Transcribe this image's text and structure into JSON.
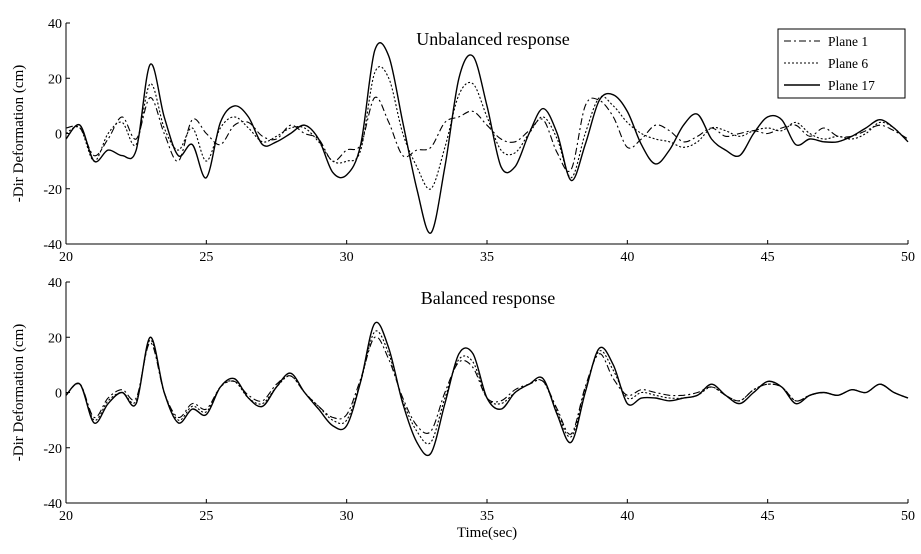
{
  "chart_data": [
    {
      "type": "line",
      "title": "Unbalanced response",
      "xlabel": "",
      "ylabel": "-Dir Deformation (cm)",
      "xlim": [
        20,
        50
      ],
      "ylim": [
        -40,
        40
      ],
      "xticks": [
        20,
        25,
        30,
        35,
        40,
        45,
        50
      ],
      "yticks": [
        -40,
        -20,
        0,
        20,
        40
      ],
      "grid": false,
      "legend": {
        "position": "top-right",
        "entries": [
          "Plane 1",
          "Plane 6",
          "Plane 17"
        ]
      },
      "series": [
        {
          "name": "Plane 1",
          "style": "dashdot",
          "x": [
            20,
            20.5,
            21,
            21.5,
            22,
            22.5,
            23,
            23.5,
            24,
            24.5,
            25,
            25.5,
            26,
            26.5,
            27,
            27.5,
            28,
            28.5,
            29,
            29.5,
            30,
            30.5,
            31,
            31.5,
            32,
            32.5,
            33,
            33.5,
            34,
            34.5,
            35,
            35.5,
            36,
            36.5,
            37,
            37.5,
            38,
            38.5,
            39,
            39.5,
            40,
            40.5,
            41,
            41.5,
            42,
            42.5,
            43,
            43.5,
            44,
            44.5,
            45,
            45.5,
            46,
            46.5,
            47,
            47.5,
            48,
            48.5,
            49,
            49.5,
            50
          ],
          "y": [
            2,
            2,
            -8,
            -2,
            6,
            -2,
            13,
            0,
            -10,
            5,
            0,
            -4,
            3,
            4,
            -1,
            -2,
            3,
            0,
            -2,
            -10,
            -6,
            -4,
            13,
            4,
            -8,
            -6,
            -5,
            4,
            6,
            8,
            3,
            -2,
            -3,
            1,
            5,
            -7,
            -13,
            10,
            12,
            6,
            -5,
            -2,
            3,
            1,
            -3,
            -1,
            2,
            -1,
            0,
            1,
            0,
            2,
            3,
            -1,
            2,
            -1,
            -1,
            1,
            3,
            1,
            -2
          ]
        },
        {
          "name": "Plane 6",
          "style": "dotted",
          "x": [
            20,
            20.5,
            21,
            21.5,
            22,
            22.5,
            23,
            23.5,
            24,
            24.5,
            25,
            25.5,
            26,
            26.5,
            27,
            27.5,
            28,
            28.5,
            29,
            29.5,
            30,
            30.5,
            31,
            31.5,
            32,
            32.5,
            33,
            33.5,
            34,
            34.5,
            35,
            35.5,
            36,
            36.5,
            37,
            37.5,
            38,
            38.5,
            39,
            39.5,
            40,
            40.5,
            41,
            41.5,
            42,
            42.5,
            43,
            43.5,
            44,
            44.5,
            45,
            45.5,
            46,
            46.5,
            47,
            47.5,
            48,
            48.5,
            49,
            49.5,
            50
          ],
          "y": [
            0,
            2,
            -10,
            0,
            4,
            -4,
            18,
            2,
            -6,
            2,
            -10,
            2,
            6,
            2,
            -3,
            -1,
            2,
            2,
            -3,
            -10,
            -10,
            -6,
            22,
            20,
            0,
            -12,
            -20,
            -5,
            14,
            18,
            6,
            -6,
            -7,
            0,
            6,
            -2,
            -16,
            0,
            13,
            10,
            4,
            0,
            -2,
            -3,
            -5,
            -3,
            2,
            1,
            -1,
            1,
            2,
            1,
            4,
            0,
            -2,
            -1,
            -2,
            0,
            4,
            2,
            -3
          ]
        },
        {
          "name": "Plane 17",
          "style": "solid",
          "x": [
            20,
            20.5,
            21,
            21.5,
            22,
            22.5,
            23,
            23.5,
            24,
            24.5,
            25,
            25.5,
            26,
            26.5,
            27,
            27.5,
            28,
            28.5,
            29,
            29.5,
            30,
            30.5,
            31,
            31.5,
            32,
            32.5,
            33,
            33.5,
            34,
            34.5,
            35,
            35.5,
            36,
            36.5,
            37,
            37.5,
            38,
            38.5,
            39,
            39.5,
            40,
            40.5,
            41,
            41.5,
            42,
            42.5,
            43,
            43.5,
            44,
            44.5,
            45,
            45.5,
            46,
            46.5,
            47,
            47.5,
            48,
            48.5,
            49,
            49.5,
            50
          ],
          "y": [
            -2,
            3,
            -10,
            -6,
            -8,
            -6,
            25,
            6,
            -8,
            -4,
            -16,
            4,
            10,
            6,
            -4,
            -3,
            0,
            3,
            -2,
            -14,
            -15,
            -4,
            30,
            28,
            4,
            -20,
            -36,
            -12,
            20,
            28,
            10,
            -12,
            -12,
            0,
            9,
            0,
            -17,
            -4,
            12,
            14,
            8,
            -4,
            -11,
            -6,
            3,
            7,
            -2,
            -6,
            -8,
            0,
            6,
            5,
            -4,
            -2,
            -3,
            -3,
            -1,
            2,
            5,
            2,
            -3
          ]
        }
      ]
    },
    {
      "type": "line",
      "title": "Balanced response",
      "xlabel": "Time(sec)",
      "ylabel": "-Dir Deformation (cm)",
      "xlim": [
        20,
        50
      ],
      "ylim": [
        -40,
        40
      ],
      "xticks": [
        20,
        25,
        30,
        35,
        40,
        45,
        50
      ],
      "yticks": [
        -40,
        -20,
        0,
        20,
        40
      ],
      "grid": false,
      "series": [
        {
          "name": "Plane 1",
          "style": "dashdot",
          "x": [
            20,
            20.5,
            21,
            21.5,
            22,
            22.5,
            23,
            23.5,
            24,
            24.5,
            25,
            25.5,
            26,
            26.5,
            27,
            27.5,
            28,
            28.5,
            29,
            29.5,
            30,
            30.5,
            31,
            31.5,
            32,
            32.5,
            33,
            33.5,
            34,
            34.5,
            35,
            35.5,
            36,
            36.5,
            37,
            37.5,
            38,
            38.5,
            39,
            39.5,
            40,
            40.5,
            41,
            41.5,
            42,
            42.5,
            43,
            43.5,
            44,
            44.5,
            45,
            45.5,
            46,
            46.5,
            47,
            47.5,
            48,
            48.5,
            49,
            49.5,
            50
          ],
          "y": [
            -1,
            3,
            -9,
            -2,
            1,
            -2,
            18,
            0,
            -9,
            -4,
            -6,
            2,
            4,
            -1,
            -3,
            3,
            6,
            0,
            -5,
            -9,
            -8,
            5,
            20,
            12,
            -2,
            -12,
            -14,
            0,
            11,
            9,
            -2,
            -3,
            1,
            3,
            4,
            -6,
            -15,
            2,
            14,
            5,
            -1,
            1,
            0,
            -1,
            -1,
            0,
            2,
            -1,
            -3,
            1,
            3,
            2,
            -3,
            -1,
            0,
            -1,
            1,
            0,
            3,
            0,
            -2
          ]
        },
        {
          "name": "Plane 6",
          "style": "dotted",
          "x": [
            20,
            20.5,
            21,
            21.5,
            22,
            22.5,
            23,
            23.5,
            24,
            24.5,
            25,
            25.5,
            26,
            26.5,
            27,
            27.5,
            28,
            28.5,
            29,
            29.5,
            30,
            30.5,
            31,
            31.5,
            32,
            32.5,
            33,
            33.5,
            34,
            34.5,
            35,
            35.5,
            36,
            36.5,
            37,
            37.5,
            38,
            38.5,
            39,
            39.5,
            40,
            40.5,
            41,
            41.5,
            42,
            42.5,
            43,
            43.5,
            44,
            44.5,
            45,
            45.5,
            46,
            46.5,
            47,
            47.5,
            48,
            48.5,
            49,
            49.5,
            50
          ],
          "y": [
            -1,
            3,
            -10,
            -3,
            0,
            -3,
            19,
            0,
            -10,
            -5,
            -7,
            2,
            4,
            -2,
            -4,
            2,
            6,
            0,
            -5,
            -10,
            -10,
            4,
            22,
            14,
            -3,
            -14,
            -18,
            -2,
            12,
            11,
            -2,
            -4,
            0,
            3,
            4,
            -7,
            -16,
            1,
            15,
            8,
            -2,
            0,
            -1,
            -2,
            -2,
            -1,
            2,
            -1,
            -3,
            1,
            3,
            2,
            -3,
            -1,
            0,
            -1,
            1,
            0,
            3,
            0,
            -2
          ]
        },
        {
          "name": "Plane 17",
          "style": "solid",
          "x": [
            20,
            20.5,
            21,
            21.5,
            22,
            22.5,
            23,
            23.5,
            24,
            24.5,
            25,
            25.5,
            26,
            26.5,
            27,
            27.5,
            28,
            28.5,
            29,
            29.5,
            30,
            30.5,
            31,
            31.5,
            32,
            32.5,
            33,
            33.5,
            34,
            34.5,
            35,
            35.5,
            36,
            36.5,
            37,
            37.5,
            38,
            38.5,
            39,
            39.5,
            40,
            40.5,
            41,
            41.5,
            42,
            42.5,
            43,
            43.5,
            44,
            44.5,
            45,
            45.5,
            46,
            46.5,
            47,
            47.5,
            48,
            48.5,
            49,
            49.5,
            50
          ],
          "y": [
            -1,
            3,
            -11,
            -4,
            0,
            -4,
            20,
            0,
            -11,
            -6,
            -8,
            2,
            5,
            -2,
            -5,
            2,
            7,
            0,
            -6,
            -12,
            -12,
            4,
            25,
            16,
            -4,
            -18,
            -22,
            -4,
            14,
            14,
            -2,
            -6,
            0,
            3,
            5,
            -8,
            -18,
            0,
            16,
            10,
            -4,
            -2,
            -2,
            -3,
            -2,
            -1,
            3,
            -1,
            -4,
            0,
            4,
            2,
            -4,
            -1,
            0,
            -1,
            1,
            0,
            3,
            0,
            -2
          ]
        }
      ]
    }
  ]
}
